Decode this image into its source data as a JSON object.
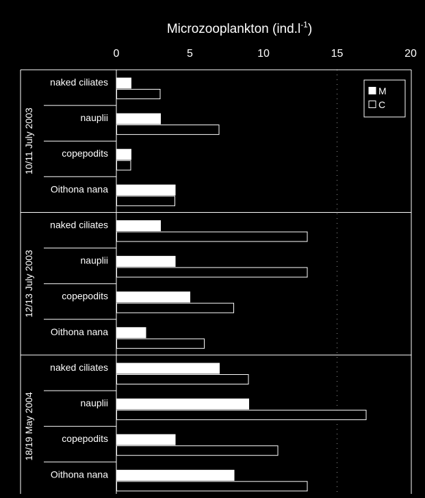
{
  "chart_data": {
    "type": "bar",
    "orientation": "horizontal",
    "title": "Microzooplankton (ind.l-1)",
    "title_main": "Microzooplankton (ind.l",
    "title_sup": "-1",
    "title_close": ")",
    "xlim": [
      0,
      20
    ],
    "x_ticks": [
      "0",
      "5",
      "10",
      "15",
      "20"
    ],
    "x_tick_values": [
      0,
      5,
      10,
      15,
      20
    ],
    "grid": "dotted vertical at 15",
    "legend": {
      "position": "top-right",
      "entries": [
        {
          "label": "M",
          "color": "#ffffff",
          "filled": true
        },
        {
          "label": "C",
          "color": "#000000",
          "filled": false
        }
      ]
    },
    "groups": [
      {
        "label": "10/11 July 2003",
        "categories": [
          "naked ciliates",
          "nauplii",
          "copepodits",
          "Oithona nana"
        ],
        "series": [
          {
            "name": "M",
            "values": [
              1,
              3,
              1,
              4
            ]
          },
          {
            "name": "C",
            "values": [
              3,
              7,
              1,
              4
            ]
          }
        ]
      },
      {
        "label": "12/13 July 2003",
        "categories": [
          "naked ciliates",
          "nauplii",
          "copepodits",
          "Oithona nana"
        ],
        "series": [
          {
            "name": "M",
            "values": [
              3,
              4,
              5,
              2
            ]
          },
          {
            "name": "C",
            "values": [
              13,
              13,
              8,
              6
            ]
          }
        ]
      },
      {
        "label": "18/19 May 2004",
        "categories": [
          "naked ciliates",
          "nauplii",
          "copepodits",
          "Oithona nana"
        ],
        "series": [
          {
            "name": "M",
            "values": [
              7,
              9,
              4,
              8
            ]
          },
          {
            "name": "C",
            "values": [
              9,
              17,
              11,
              13
            ]
          }
        ]
      }
    ]
  }
}
